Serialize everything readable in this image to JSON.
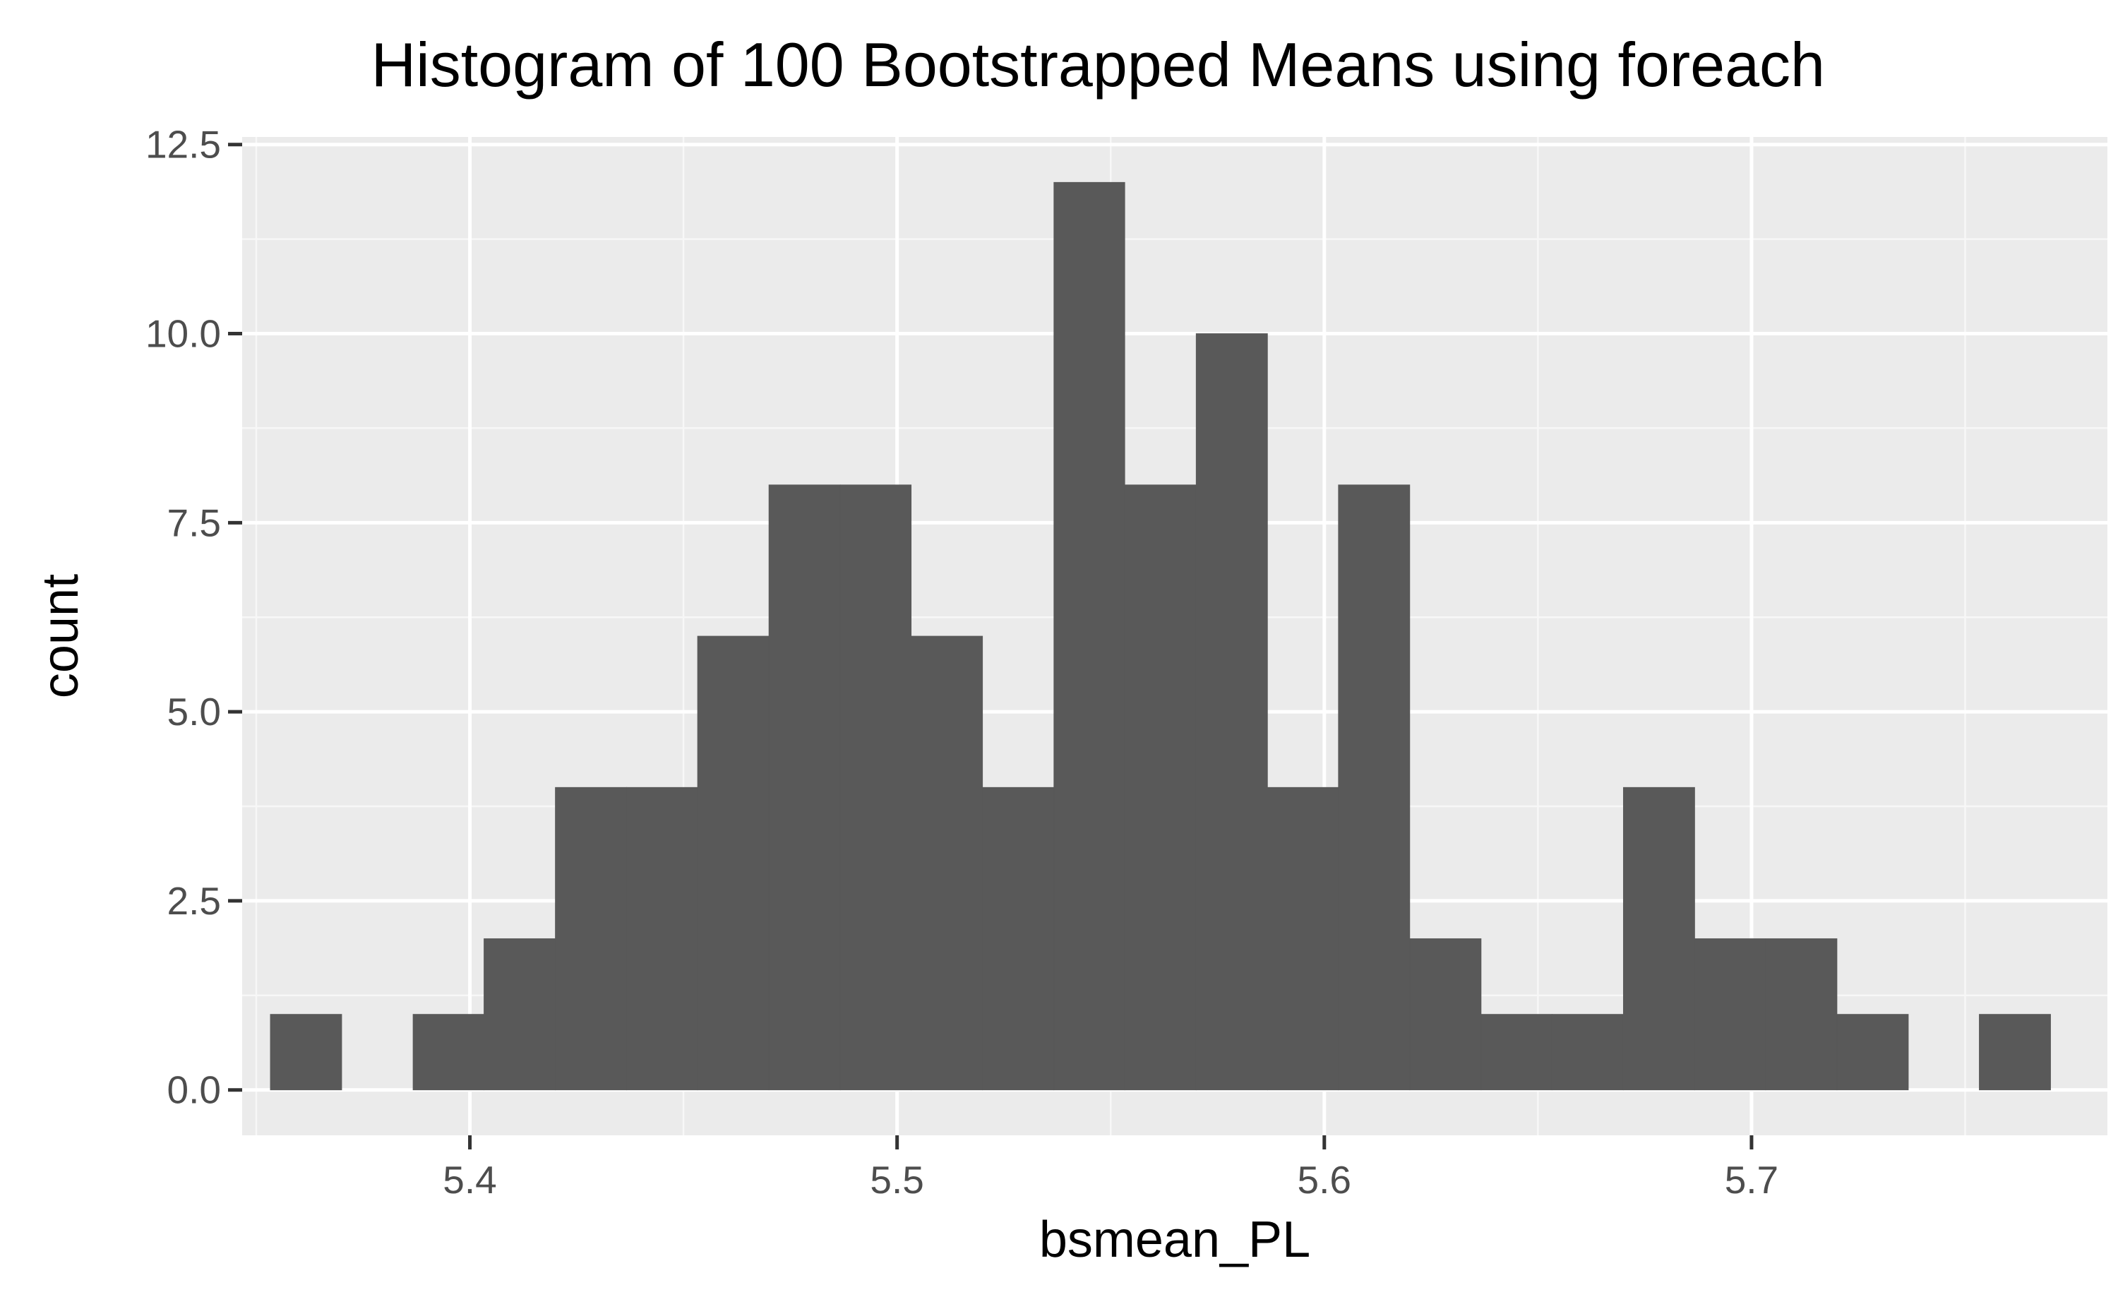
{
  "chart_data": {
    "type": "bar",
    "title": "Histogram of 100 Bootstrapped Means using foreach",
    "xlabel": "bsmean_PL",
    "ylabel": "count",
    "xlim": [
      5.3467,
      5.7833
    ],
    "ylim": [
      -0.6,
      12.6
    ],
    "x_ticks": [
      5.4,
      5.5,
      5.6,
      5.7
    ],
    "x_tick_labels": [
      "5.4",
      "5.5",
      "5.6",
      "5.7"
    ],
    "y_ticks": [
      0,
      2.5,
      5,
      7.5,
      10,
      12.5
    ],
    "y_tick_labels": [
      "0.0",
      "2.5",
      "5.0",
      "7.5",
      "10.0",
      "12.5"
    ],
    "bins": [
      {
        "x0": 5.3533,
        "x1": 5.37,
        "count": 1
      },
      {
        "x0": 5.37,
        "x1": 5.3867,
        "count": 0
      },
      {
        "x0": 5.3867,
        "x1": 5.4033,
        "count": 1
      },
      {
        "x0": 5.4033,
        "x1": 5.42,
        "count": 2
      },
      {
        "x0": 5.42,
        "x1": 5.4367,
        "count": 4
      },
      {
        "x0": 5.4367,
        "x1": 5.4533,
        "count": 4
      },
      {
        "x0": 5.4533,
        "x1": 5.47,
        "count": 6
      },
      {
        "x0": 5.47,
        "x1": 5.4867,
        "count": 8
      },
      {
        "x0": 5.4867,
        "x1": 5.5033,
        "count": 8
      },
      {
        "x0": 5.5033,
        "x1": 5.52,
        "count": 6
      },
      {
        "x0": 5.52,
        "x1": 5.5367,
        "count": 4
      },
      {
        "x0": 5.5367,
        "x1": 5.5533,
        "count": 12
      },
      {
        "x0": 5.5533,
        "x1": 5.57,
        "count": 8
      },
      {
        "x0": 5.57,
        "x1": 5.5867,
        "count": 10
      },
      {
        "x0": 5.5867,
        "x1": 5.6033,
        "count": 4
      },
      {
        "x0": 5.6033,
        "x1": 5.62,
        "count": 8
      },
      {
        "x0": 5.62,
        "x1": 5.6367,
        "count": 2
      },
      {
        "x0": 5.6367,
        "x1": 5.6533,
        "count": 1
      },
      {
        "x0": 5.6533,
        "x1": 5.67,
        "count": 1
      },
      {
        "x0": 5.67,
        "x1": 5.6867,
        "count": 4
      },
      {
        "x0": 5.6867,
        "x1": 5.7033,
        "count": 2
      },
      {
        "x0": 5.7033,
        "x1": 5.72,
        "count": 2
      },
      {
        "x0": 5.72,
        "x1": 5.7367,
        "count": 1
      },
      {
        "x0": 5.7367,
        "x1": 5.7533,
        "count": 0
      },
      {
        "x0": 5.7533,
        "x1": 5.77,
        "count": 1
      }
    ],
    "grid": true,
    "legend": "none",
    "colors": {
      "panel_background": "#ebebeb",
      "grid_major": "#ffffff",
      "grid_minor": "#f7f7f7",
      "bar_fill": "#595959",
      "tick_mark": "#333333",
      "tick_label": "#4d4d4d",
      "text": "#000000"
    }
  }
}
